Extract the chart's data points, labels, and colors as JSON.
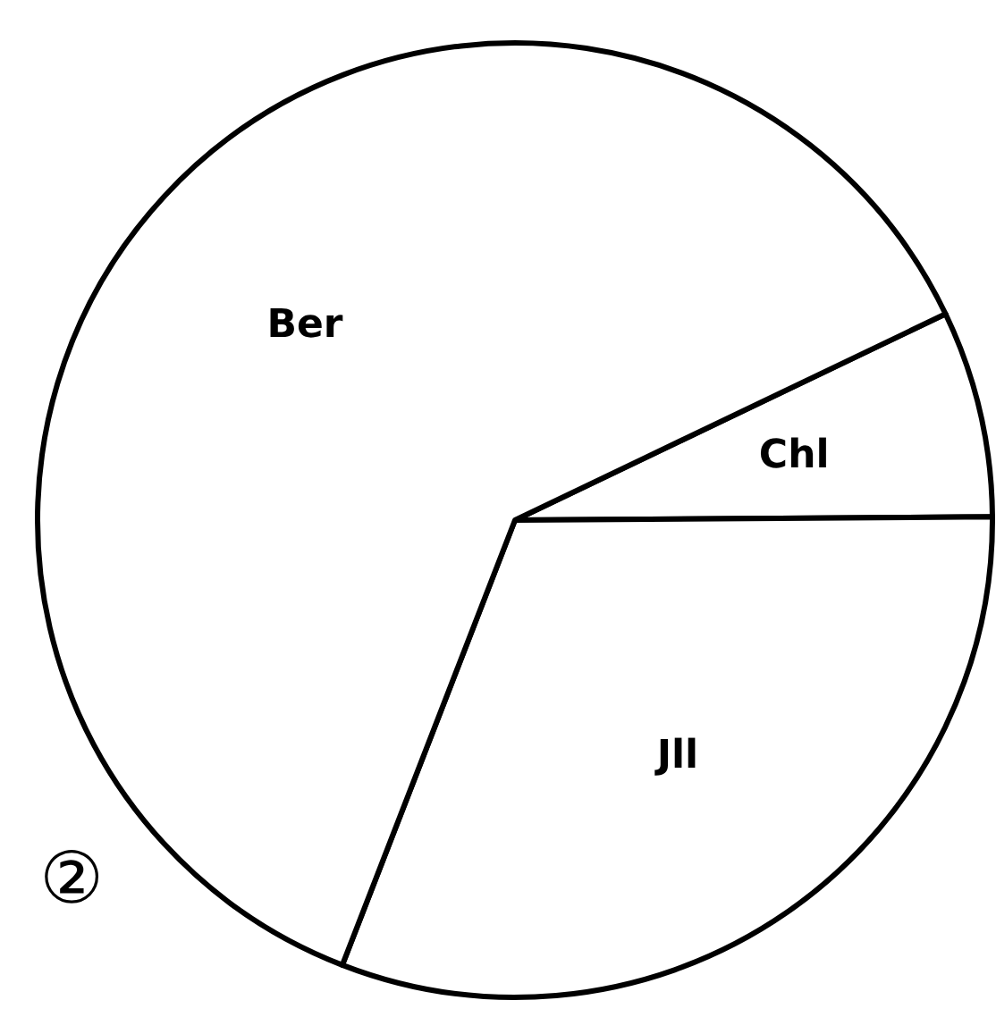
{
  "chart_data": {
    "type": "pie",
    "categories": [
      "Chl",
      "Jll",
      "Ber"
    ],
    "values": [
      7,
      31,
      62
    ],
    "colors": [
      "#ffffff",
      "#ffffff",
      "#ffffff"
    ],
    "annotations": [
      "②"
    ]
  }
}
